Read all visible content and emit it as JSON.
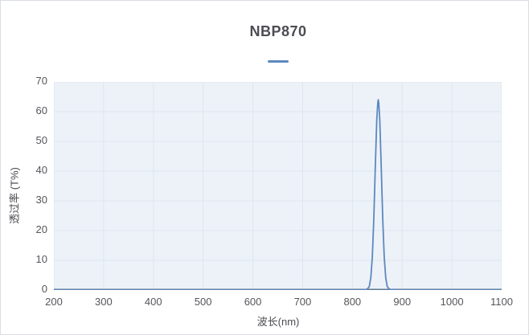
{
  "title": {
    "text": "NBP870"
  },
  "legend": {
    "marker": "line-dash-icon",
    "color": "#5d88c0"
  },
  "axes": {
    "x": {
      "label": "波长(nm)",
      "min": 200,
      "max": 1100,
      "ticks": [
        200,
        300,
        400,
        500,
        600,
        700,
        800,
        900,
        1000,
        1100
      ]
    },
    "y": {
      "label": "透过率 (T%)",
      "min": 0,
      "max": 70,
      "ticks": [
        0,
        10,
        20,
        30,
        40,
        50,
        60,
        70
      ]
    }
  },
  "colors": {
    "line": "#5d88c0",
    "plot_background": "#edf2f8",
    "gridline": "#dde6ee",
    "axis_line": "#5f7790",
    "title_text": "#4c4c52",
    "tick_text": "#55565b",
    "card_border": "#d9dee4"
  },
  "chart_data": {
    "type": "line",
    "title": "NBP870",
    "xlabel": "波长(nm)",
    "ylabel": "透过率 (T%)",
    "xlim": [
      200,
      1100
    ],
    "ylim": [
      0,
      70
    ],
    "x_ticks": [
      200,
      300,
      400,
      500,
      600,
      700,
      800,
      900,
      1000,
      1100
    ],
    "y_ticks": [
      0,
      10,
      20,
      30,
      40,
      50,
      60,
      70
    ],
    "grid": true,
    "legend_position": "top-center",
    "peak_summary": {
      "center_nm": 852,
      "max_transmittance_pct": 64,
      "fwhm_nm": 15
    },
    "series": [
      {
        "name": "NBP870",
        "color": "#5d88c0",
        "points": [
          [
            200,
            0
          ],
          [
            250,
            0
          ],
          [
            300,
            0
          ],
          [
            350,
            0
          ],
          [
            400,
            0
          ],
          [
            450,
            0
          ],
          [
            500,
            0
          ],
          [
            550,
            0
          ],
          [
            600,
            0
          ],
          [
            650,
            0
          ],
          [
            700,
            0
          ],
          [
            750,
            0
          ],
          [
            800,
            0
          ],
          [
            815,
            0
          ],
          [
            822,
            0.05
          ],
          [
            827,
            0.15
          ],
          [
            831,
            0.5
          ],
          [
            834,
            1.2
          ],
          [
            837,
            4.1
          ],
          [
            840,
            11
          ],
          [
            843,
            23.8
          ],
          [
            846,
            41.2
          ],
          [
            849,
            57.4
          ],
          [
            851,
            62.9
          ],
          [
            852,
            64
          ],
          [
            853,
            62.9
          ],
          [
            855,
            57.4
          ],
          [
            858,
            41.2
          ],
          [
            861,
            23.8
          ],
          [
            864,
            11
          ],
          [
            867,
            4.1
          ],
          [
            870,
            1.2
          ],
          [
            873,
            0.5
          ],
          [
            877,
            0.15
          ],
          [
            882,
            0.05
          ],
          [
            890,
            0
          ],
          [
            900,
            0
          ],
          [
            950,
            0
          ],
          [
            1000,
            0
          ],
          [
            1050,
            0
          ],
          [
            1100,
            0
          ]
        ]
      }
    ]
  }
}
